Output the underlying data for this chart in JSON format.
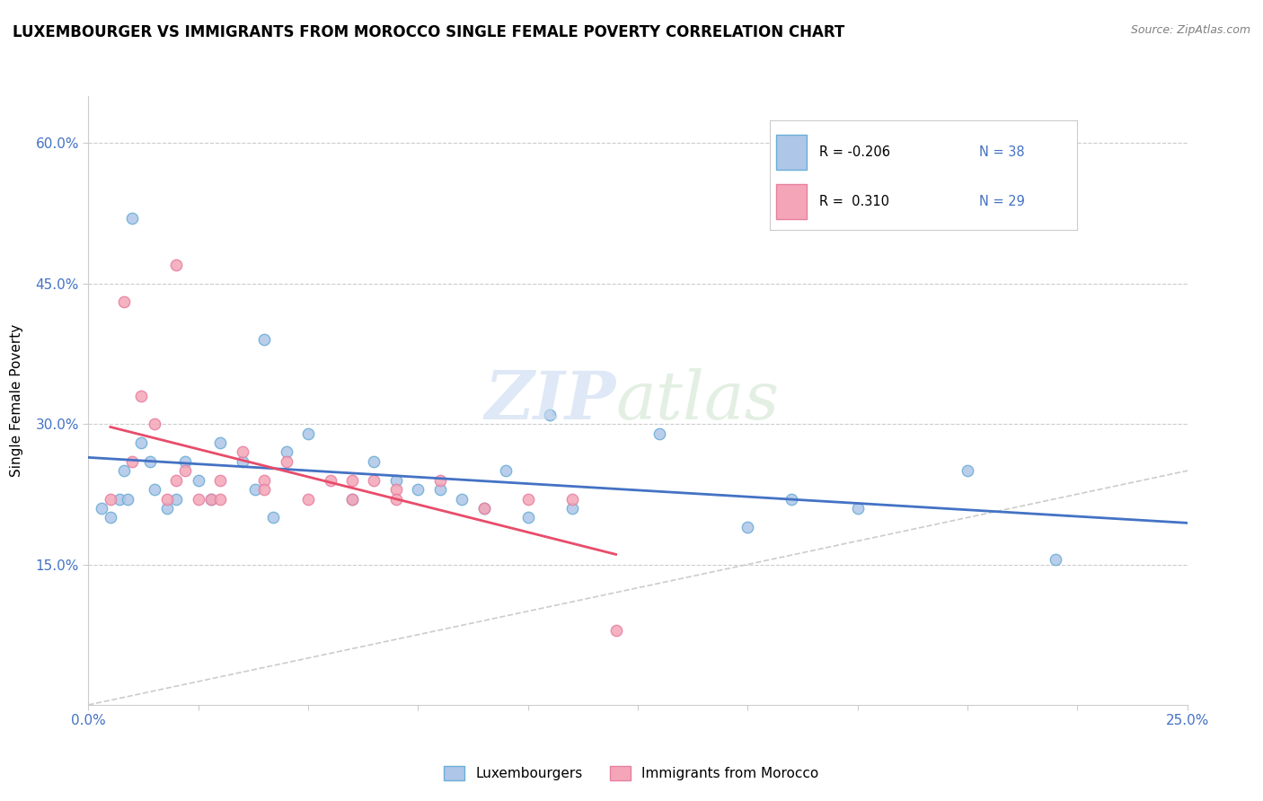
{
  "title": "LUXEMBOURGER VS IMMIGRANTS FROM MOROCCO SINGLE FEMALE POVERTY CORRELATION CHART",
  "source": "Source: ZipAtlas.com",
  "ylabel": "Single Female Poverty",
  "xlim": [
    0.0,
    0.25
  ],
  "ylim": [
    0.0,
    0.65
  ],
  "x_ticks": [
    0.0,
    0.025,
    0.05,
    0.075,
    0.1,
    0.125,
    0.15,
    0.175,
    0.2,
    0.225,
    0.25
  ],
  "y_tick_labels": [
    "15.0%",
    "30.0%",
    "45.0%",
    "60.0%"
  ],
  "y_ticks": [
    0.15,
    0.3,
    0.45,
    0.6
  ],
  "color_blue": "#6baed6",
  "color_blue_light": "#aec6e8",
  "color_pink": "#f4a6b8",
  "color_pink_dark": "#e87fa0",
  "lux_scatter_x": [
    0.01,
    0.005,
    0.008,
    0.012,
    0.015,
    0.02,
    0.025,
    0.022,
    0.018,
    0.03,
    0.035,
    0.04,
    0.038,
    0.045,
    0.05,
    0.06,
    0.065,
    0.07,
    0.075,
    0.08,
    0.085,
    0.09,
    0.095,
    0.1,
    0.105,
    0.11,
    0.13,
    0.15,
    0.16,
    0.175,
    0.2,
    0.22,
    0.007,
    0.003,
    0.009,
    0.014,
    0.028,
    0.042
  ],
  "lux_scatter_y": [
    0.52,
    0.2,
    0.25,
    0.28,
    0.23,
    0.22,
    0.24,
    0.26,
    0.21,
    0.28,
    0.26,
    0.39,
    0.23,
    0.27,
    0.29,
    0.22,
    0.26,
    0.24,
    0.23,
    0.23,
    0.22,
    0.21,
    0.25,
    0.2,
    0.31,
    0.21,
    0.29,
    0.19,
    0.22,
    0.21,
    0.25,
    0.155,
    0.22,
    0.21,
    0.22,
    0.26,
    0.22,
    0.2
  ],
  "mor_scatter_x": [
    0.005,
    0.008,
    0.01,
    0.012,
    0.015,
    0.018,
    0.02,
    0.022,
    0.025,
    0.028,
    0.03,
    0.035,
    0.04,
    0.045,
    0.05,
    0.055,
    0.06,
    0.065,
    0.07,
    0.08,
    0.09,
    0.1,
    0.11,
    0.02,
    0.03,
    0.04,
    0.06,
    0.07,
    0.12
  ],
  "mor_scatter_y": [
    0.22,
    0.43,
    0.26,
    0.33,
    0.3,
    0.22,
    0.24,
    0.25,
    0.22,
    0.22,
    0.24,
    0.27,
    0.24,
    0.26,
    0.22,
    0.24,
    0.24,
    0.24,
    0.23,
    0.24,
    0.21,
    0.22,
    0.22,
    0.47,
    0.22,
    0.23,
    0.22,
    0.22,
    0.08
  ],
  "diag_line_color": "#cccccc",
  "lux_line_color": "#4472c4",
  "mor_line_color": "#e84c6a",
  "tick_label_color": "#4472c4"
}
